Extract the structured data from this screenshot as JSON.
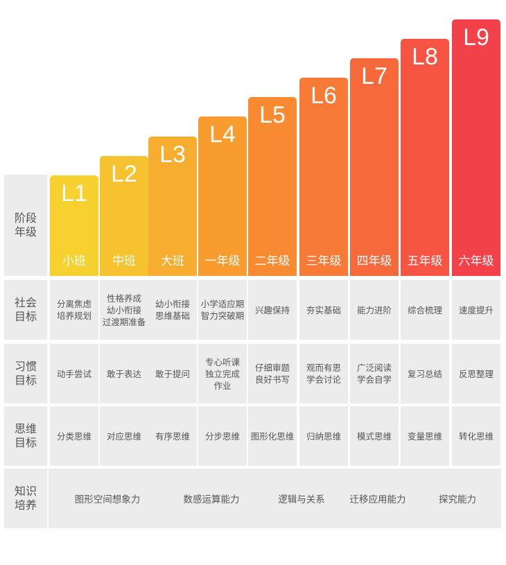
{
  "row_labels": {
    "stage": "阶段\n年级",
    "social": "社会\n目标",
    "habit": "习惯\n目标",
    "thinking": "思维\n目标",
    "knowledge": "知识\n培养"
  },
  "levels": [
    {
      "level": "L1",
      "grade": "小班",
      "color": "#f7d130",
      "social": "分离焦虑\n培养规划",
      "habit": "动手尝试",
      "thinking": "分类思维"
    },
    {
      "level": "L2",
      "grade": "中班",
      "color": "#f7c22f",
      "social": "性格养成\n幼小衔接\n过渡期准备",
      "habit": "敢于表达",
      "thinking": "对应思维"
    },
    {
      "level": "L3",
      "grade": "大班",
      "color": "#f7ae30",
      "social": "幼小衔接\n思维基础",
      "habit": "敢于提问",
      "thinking": "有序思维"
    },
    {
      "level": "L4",
      "grade": "一年级",
      "color": "#f89c30",
      "social": "小学适应期\n智力突破期",
      "habit": "专心听课\n独立完成\n作业",
      "thinking": "分步思维"
    },
    {
      "level": "L5",
      "grade": "二年级",
      "color": "#f88b32",
      "social": "兴趣保持",
      "habit": "仔细审题\n良好书写",
      "thinking": "图形化思维"
    },
    {
      "level": "L6",
      "grade": "三年级",
      "color": "#f77b36",
      "social": "夯实基础",
      "habit": "观而有思\n学会讨论",
      "thinking": "归纳思维"
    },
    {
      "level": "L7",
      "grade": "四年级",
      "color": "#f6693b",
      "social": "能力进阶",
      "habit": "广泛阅读\n学会自学",
      "thinking": "模式思维"
    },
    {
      "level": "L8",
      "grade": "五年级",
      "color": "#f55542",
      "social": "综合梳理",
      "habit": "复习总结",
      "thinking": "变量思维"
    },
    {
      "level": "L9",
      "grade": "六年级",
      "color": "#f3414a",
      "social": "速度提升",
      "habit": "反思整理",
      "thinking": "转化思维"
    }
  ],
  "knowledge": [
    "图形空间想象力",
    "数感运算能力",
    "逻辑与关系",
    "迁移应用能力",
    "探究能力"
  ]
}
